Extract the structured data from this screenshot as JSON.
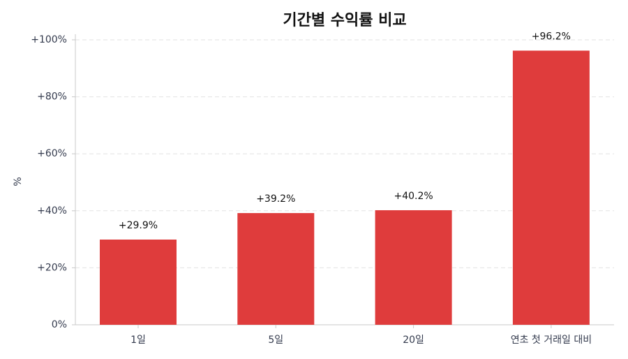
{
  "chart_data": {
    "type": "bar",
    "title": "기간별 수익률 비교",
    "y_label": "%",
    "categories": [
      "1일",
      "5일",
      "20일",
      "연초 첫 거래일 대비"
    ],
    "values": [
      29.9,
      39.2,
      40.2,
      96.2
    ],
    "value_labels": [
      "+29.9%",
      "+39.2%",
      "+40.2%",
      "+96.2%"
    ],
    "color": "#df3c3c",
    "ylim": [
      0,
      100
    ],
    "yticks": [
      {
        "value": 0,
        "label": "0%"
      },
      {
        "value": 20,
        "label": "+20%"
      },
      {
        "value": 40,
        "label": "+40%"
      },
      {
        "value": 60,
        "label": "+60%"
      },
      {
        "value": 80,
        "label": "+80%"
      },
      {
        "value": 100,
        "label": "+100%"
      }
    ],
    "grid": true
  }
}
